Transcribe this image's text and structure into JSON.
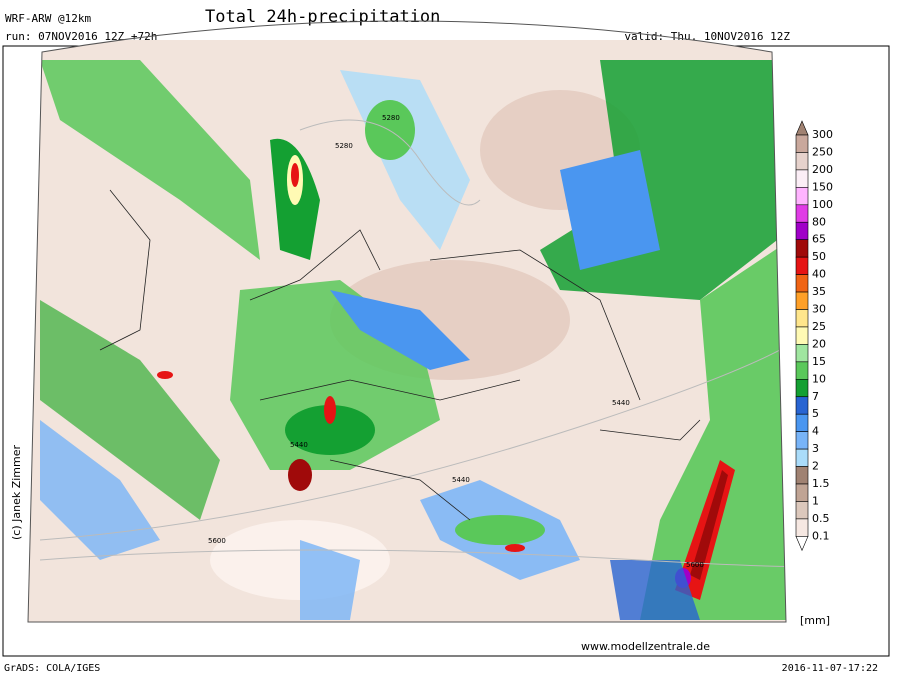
{
  "header": {
    "model": "WRF-ARW @12km",
    "run": "run: 07NOV2016 12Z +72h",
    "title": "Total 24h-precipitation",
    "valid": "valid: Thu, 10NOV2016 12Z"
  },
  "colorbar": {
    "levels": [
      300,
      250,
      200,
      150,
      100,
      80,
      65,
      50,
      40,
      35,
      30,
      25,
      20,
      15,
      10,
      7,
      5,
      4,
      3,
      2,
      1.5,
      1,
      0.5,
      0.1
    ],
    "colors": [
      "#c9a89c",
      "#e6d2cc",
      "#fbeef6",
      "#ffb4ff",
      "#e03ce6",
      "#a000c8",
      "#a00a0a",
      "#e61414",
      "#f06414",
      "#ffa028",
      "#ffe68c",
      "#fffab4",
      "#a0e6a0",
      "#5ac85a",
      "#14a032",
      "#2864d2",
      "#4a96f0",
      "#78b4f8",
      "#aadcfa",
      "#a08272",
      "#c0a494",
      "#dcc8bc",
      "#f6e8e2"
    ],
    "over_color": "#a08272",
    "under_color": "#ffffff",
    "unit": "[mm]"
  },
  "contour_labels": [
    "5280",
    "5280",
    "5440",
    "5440",
    "5440",
    "5600",
    "5600"
  ],
  "credit": "(c) Janek Zimmer",
  "website": "www.modellzentrale.de",
  "footer": {
    "left": "GrADS: COLA/IGES",
    "right": "2016-11-07-17:22"
  }
}
